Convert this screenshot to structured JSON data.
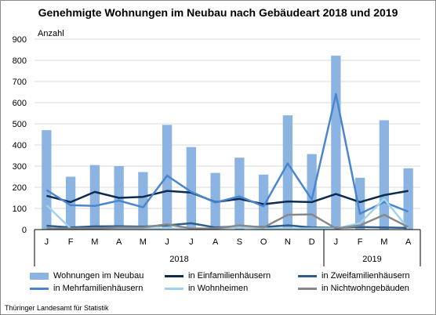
{
  "title": "Genehmigte Wohnungen im Neubau nach Gebäudeart 2018 und 2019",
  "source": "Thüringer Landesamt für Statistik",
  "colors": {
    "bars": "#8cb4e2",
    "einfamilien": "#0d2a4f",
    "zweifamilien": "#2e5d8c",
    "mehrfamilien": "#4a86cf",
    "wohnheime": "#9fd3ea",
    "nichtwohn": "#888888",
    "grid": "#d9d9d9",
    "axis": "#000000"
  },
  "chart_data": {
    "type": "bar",
    "ylabel": "Anzahl",
    "ylim": [
      0,
      900
    ],
    "yticks": [
      0,
      100,
      200,
      300,
      400,
      500,
      600,
      700,
      800,
      900
    ],
    "grid": true,
    "legend_position": "bottom",
    "categories": [
      "J",
      "F",
      "M",
      "A",
      "M",
      "J",
      "J",
      "A",
      "S",
      "O",
      "N",
      "D",
      "J",
      "F",
      "M",
      "A"
    ],
    "year_groups": [
      {
        "label": "2018",
        "count": 12
      },
      {
        "label": "2019",
        "count": 4
      }
    ],
    "series": [
      {
        "name": "Wohnungen im Neubau",
        "kind": "bar",
        "color_key": "bars",
        "values": [
          470,
          250,
          305,
          300,
          272,
          495,
          390,
          268,
          340,
          260,
          540,
          357,
          822,
          245,
          517,
          290
        ]
      },
      {
        "name": "in Einfamilienhäusern",
        "kind": "line",
        "color_key": "einfamilien",
        "values": [
          160,
          130,
          178,
          150,
          155,
          183,
          175,
          130,
          145,
          120,
          133,
          130,
          168,
          130,
          163,
          183
        ]
      },
      {
        "name": "in Zweifamilienhäusern",
        "kind": "line",
        "color_key": "zweifamilien",
        "values": [
          18,
          10,
          15,
          16,
          14,
          20,
          30,
          10,
          16,
          12,
          20,
          10,
          8,
          12,
          10,
          8
        ]
      },
      {
        "name": "in Mehrfamilienhäusern",
        "kind": "line",
        "color_key": "mehrfamilien",
        "values": [
          187,
          115,
          112,
          137,
          105,
          255,
          178,
          128,
          157,
          110,
          313,
          142,
          640,
          75,
          130,
          85
        ]
      },
      {
        "name": "in Wohnheimen",
        "kind": "line",
        "color_key": "wohnheime",
        "values": [
          115,
          5,
          5,
          5,
          5,
          5,
          5,
          5,
          10,
          5,
          5,
          5,
          5,
          30,
          145,
          5
        ]
      },
      {
        "name": "in Nichtwohngebäuden",
        "kind": "line",
        "color_key": "nichtwohn",
        "values": [
          5,
          5,
          5,
          10,
          10,
          25,
          5,
          5,
          20,
          10,
          70,
          72,
          5,
          20,
          70,
          12
        ]
      }
    ]
  }
}
